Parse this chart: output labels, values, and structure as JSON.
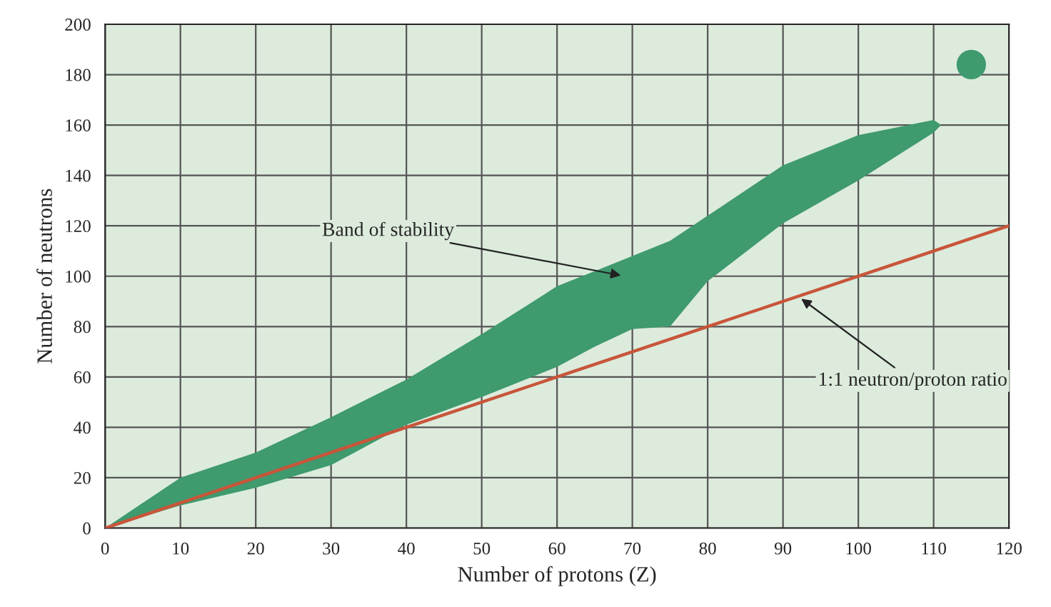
{
  "chart_data": {
    "type": "area",
    "xlabel": "Number of protons (Z)",
    "ylabel": "Number of neutrons",
    "series": [
      {
        "color": "#3f9a6e",
        "x": [
          0,
          10,
          20,
          30,
          40,
          50,
          60,
          65,
          70,
          75,
          80,
          90,
          100,
          110,
          111
        ],
        "values": [
          null,
          null,
          null,
          null,
          null,
          null,
          null,
          null,
          null,
          null,
          null,
          null,
          null,
          null,
          null
        ],
        "upper": [
          0,
          20,
          30,
          44,
          59,
          77,
          96,
          102,
          108,
          114,
          124,
          144,
          156,
          162,
          160
        ],
        "lower": [
          0,
          9,
          16,
          25,
          41,
          52,
          64,
          72,
          79,
          80,
          98,
          121,
          138,
          157,
          160
        ]
      },
      {
        "type": "scatter",
        "color": "#3f9a6e",
        "x": [
          115
        ],
        "values": [
          184
        ]
      },
      {
        "type": "line",
        "color": "#c8553a",
        "x": [
          0,
          120
        ],
        "values": [
          0,
          120
        ]
      }
    ],
    "annotations": [
      "Band of stability",
      {
        "text": "1:1 neutron/proton ratio",
        "x": 92,
        "y": 92
      }
    ],
    "xlim": [
      0,
      120
    ],
    "ylim": [
      0,
      200
    ],
    "xticks": [
      0,
      10,
      20,
      30,
      40,
      50,
      60,
      70,
      80,
      90,
      100,
      110,
      120
    ],
    "yticks": [
      0,
      20,
      40,
      60,
      80,
      100,
      120,
      140,
      160,
      180,
      200
    ],
    "grid": true,
    "legend": false
  }
}
